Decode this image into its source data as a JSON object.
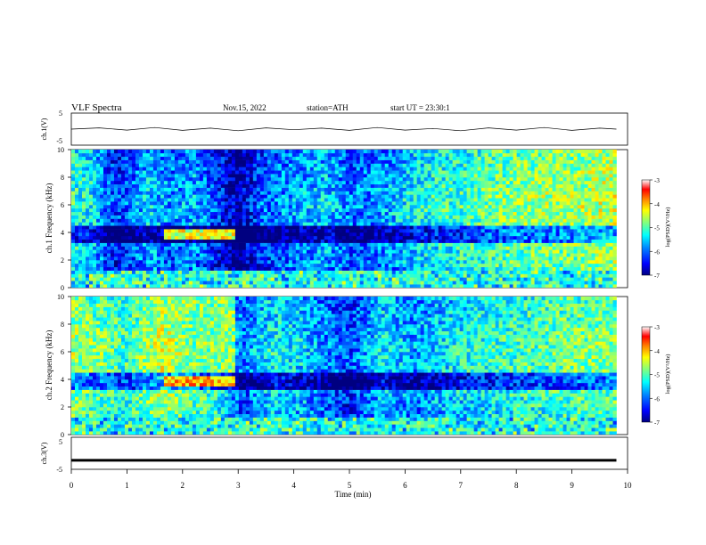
{
  "header": {
    "title": "VLF Spectra",
    "date": "Nov.15, 2022",
    "station": "station=ATH",
    "start": "start UT =  23:30:1"
  },
  "colors": {
    "colormap": [
      "#000080",
      "#0000ff",
      "#0080ff",
      "#00ffff",
      "#80ff80",
      "#ffff00",
      "#ff8000",
      "#ff0000",
      "#ffffff"
    ],
    "trace": "#000000",
    "background": "#ffffff"
  },
  "chart_data": [
    {
      "type": "line",
      "name": "ch1-waveform",
      "ylabel": "ch.1(V)",
      "ylim": [
        -5,
        5
      ],
      "yticks": [
        "5",
        "-5"
      ],
      "xlim": [
        0,
        10
      ],
      "x": [
        0,
        0.5,
        1,
        1.5,
        2,
        2.5,
        3,
        3.5,
        4,
        4.5,
        5,
        5.5,
        6,
        6.5,
        7,
        7.5,
        8,
        8.5,
        9,
        9.5,
        9.8
      ],
      "y": [
        0,
        0.4,
        -0.3,
        0.5,
        -0.4,
        0.3,
        -0.5,
        0.4,
        -0.2,
        0.3,
        -0.4,
        0.5,
        -0.3,
        0.2,
        -0.5,
        0.4,
        -0.3,
        0.5,
        -0.4,
        0.3,
        0
      ]
    },
    {
      "type": "heatmap",
      "name": "ch1-spectrogram",
      "ylabel": "ch.1  Frequency (kHz)",
      "xlim": [
        0,
        10
      ],
      "ylim": [
        0,
        10
      ],
      "yticks": [
        "0",
        "2",
        "4",
        "6",
        "8",
        "10"
      ],
      "colorbar": {
        "label": "log(PSD)(V²/Hz)",
        "range": [
          -7,
          -3
        ],
        "ticks": [
          "-3",
          "-4",
          "-5",
          "-6",
          "-7"
        ]
      },
      "time_axis_end": 9.8,
      "band_level": [
        [
          0,
          -5.2
        ],
        [
          0.4,
          -5.5
        ],
        [
          0.8,
          -6.3
        ],
        [
          1.4,
          -5.6
        ],
        [
          1.8,
          -5.9
        ],
        [
          2.2,
          -5.7
        ],
        [
          2.6,
          -6.2
        ],
        [
          3,
          -6.8
        ],
        [
          3.4,
          -6.1
        ],
        [
          4,
          -5.8
        ],
        [
          4.6,
          -5.6
        ],
        [
          5,
          -6.0
        ],
        [
          5.6,
          -5.8
        ],
        [
          6.2,
          -5.4
        ],
        [
          7,
          -5.2
        ],
        [
          8,
          -4.9
        ],
        [
          9,
          -4.8
        ],
        [
          10,
          -4.6
        ]
      ],
      "events": [
        {
          "label": "enhanced band",
          "t": [
            1.65,
            2.95
          ],
          "f": [
            3.6,
            4.2
          ],
          "level": -4.6
        }
      ]
    },
    {
      "type": "heatmap",
      "name": "ch2-spectrogram",
      "ylabel": "ch.2  Frequency (kHz)",
      "xlim": [
        0,
        10
      ],
      "ylim": [
        0,
        10
      ],
      "yticks": [
        "0",
        "2",
        "4",
        "6",
        "8",
        "10"
      ],
      "colorbar": {
        "label": "log(PSD)(V²/Hz)",
        "range": [
          -7,
          -3
        ],
        "ticks": [
          "-3",
          "-4",
          "-5",
          "-6",
          "-7"
        ]
      },
      "time_axis_end": 9.8,
      "band_level": [
        [
          0,
          -4.8
        ],
        [
          0.6,
          -5.0
        ],
        [
          1,
          -5.2
        ],
        [
          1.6,
          -4.6
        ],
        [
          2,
          -4.9
        ],
        [
          2.6,
          -5.1
        ],
        [
          3.1,
          -6.0
        ],
        [
          3.6,
          -5.4
        ],
        [
          4.2,
          -5.6
        ],
        [
          5,
          -6.2
        ],
        [
          5.6,
          -5.5
        ],
        [
          6.2,
          -5.8
        ],
        [
          7,
          -5.4
        ],
        [
          8,
          -5.2
        ],
        [
          9,
          -5.0
        ],
        [
          10,
          -4.9
        ]
      ],
      "events": [
        {
          "label": "enhanced band",
          "t": [
            1.65,
            2.95
          ],
          "f": [
            3.6,
            4.2
          ],
          "level": -4.2
        },
        {
          "label": "broadband enhancement",
          "t": [
            1.65,
            2.95
          ],
          "f": [
            4.4,
            10
          ],
          "level": -5.0
        }
      ]
    },
    {
      "type": "line",
      "name": "ch3-waveform",
      "ylabel": "ch.3(V)",
      "ylim": [
        -5,
        5
      ],
      "yticks": [
        "5",
        "-5"
      ],
      "xlim": [
        0,
        10
      ],
      "xticks": [
        "0",
        "1",
        "2",
        "3",
        "4",
        "5",
        "6",
        "7",
        "8",
        "9",
        "10"
      ],
      "xlabel": "Time (min)",
      "x": [
        0,
        9.8
      ],
      "y": [
        -2.2,
        -2.2
      ]
    }
  ]
}
